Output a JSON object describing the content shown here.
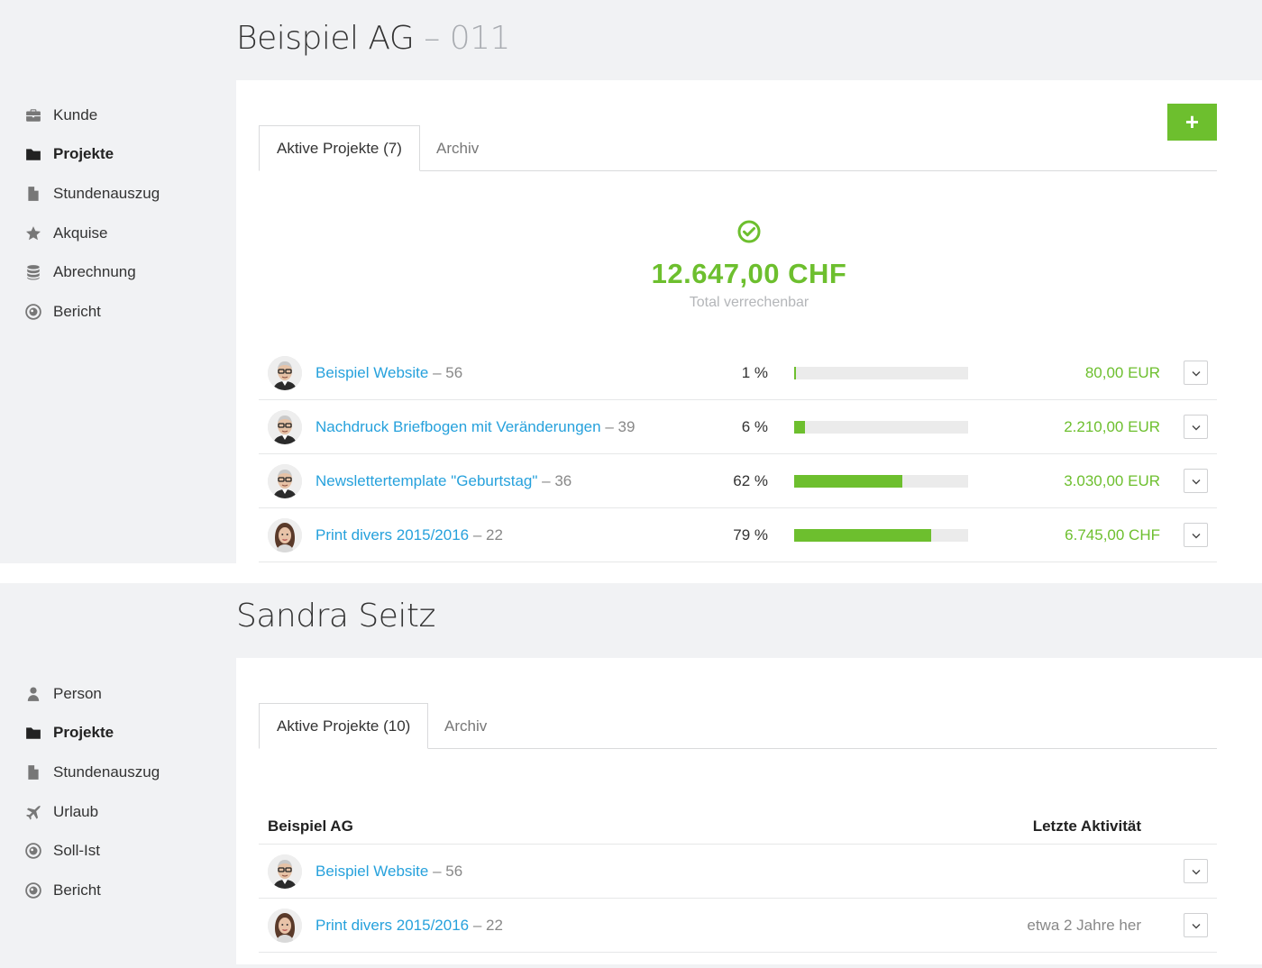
{
  "panel1": {
    "title": "Beispiel AG",
    "title_sep": "–",
    "title_suffix": "011",
    "sidebar": [
      {
        "label": "Kunde",
        "icon": "briefcase-icon",
        "active": false
      },
      {
        "label": "Projekte",
        "icon": "folder-icon",
        "active": true
      },
      {
        "label": "Stundenauszug",
        "icon": "file-icon",
        "active": false
      },
      {
        "label": "Akquise",
        "icon": "star-icon",
        "active": false
      },
      {
        "label": "Abrechnung",
        "icon": "database-icon",
        "active": false
      },
      {
        "label": "Bericht",
        "icon": "eye-icon",
        "active": false
      }
    ],
    "tabs": [
      {
        "label": "Aktive Projekte (7)",
        "active": true
      },
      {
        "label": "Archiv",
        "active": false
      }
    ],
    "add_label": "+",
    "summary": {
      "icon": "check-circle-icon",
      "amount": "12.647,00 CHF",
      "label": "Total verrechenbar"
    },
    "projects": [
      {
        "name": "Beispiel Website",
        "number": "– 56",
        "percent": "1 %",
        "progress": 0.01,
        "amount": "80,00 EUR",
        "avatar": "man-avatar"
      },
      {
        "name": "Nachdruck Briefbogen mit Veränderungen",
        "number": "– 39",
        "percent": "6 %",
        "progress": 0.06,
        "amount": "2.210,00 EUR",
        "avatar": "man-avatar"
      },
      {
        "name": "Newslettertemplate \"Geburtstag\"",
        "number": "– 36",
        "percent": "62 %",
        "progress": 0.62,
        "amount": "3.030,00 EUR",
        "avatar": "man-avatar"
      },
      {
        "name": "Print divers 2015/2016",
        "number": "– 22",
        "percent": "79 %",
        "progress": 0.79,
        "amount": "6.745,00 CHF",
        "avatar": "woman-avatar"
      }
    ]
  },
  "panel2": {
    "title": "Sandra Seitz",
    "sidebar": [
      {
        "label": "Person",
        "icon": "user-icon",
        "active": false
      },
      {
        "label": "Projekte",
        "icon": "folder-icon",
        "active": true
      },
      {
        "label": "Stundenauszug",
        "icon": "file-icon",
        "active": false
      },
      {
        "label": "Urlaub",
        "icon": "plane-icon",
        "active": false
      },
      {
        "label": "Soll-Ist",
        "icon": "eye-icon",
        "active": false
      },
      {
        "label": "Bericht",
        "icon": "eye-icon",
        "active": false
      }
    ],
    "tabs": [
      {
        "label": "Aktive Projekte (10)",
        "active": true
      },
      {
        "label": "Archiv",
        "active": false
      }
    ],
    "list_header": {
      "left": "Beispiel AG",
      "right": "Letzte Aktivität"
    },
    "projects": [
      {
        "name": "Beispiel Website",
        "number": "– 56",
        "activity": "",
        "avatar": "man-avatar"
      },
      {
        "name": "Print divers 2015/2016",
        "number": "– 22",
        "activity": "etwa 2 Jahre her",
        "avatar": "woman-avatar"
      }
    ]
  },
  "colors": {
    "accent_green": "#6dbf2e",
    "link_blue": "#26a1dc",
    "panel_bg": "#f1f2f4"
  }
}
